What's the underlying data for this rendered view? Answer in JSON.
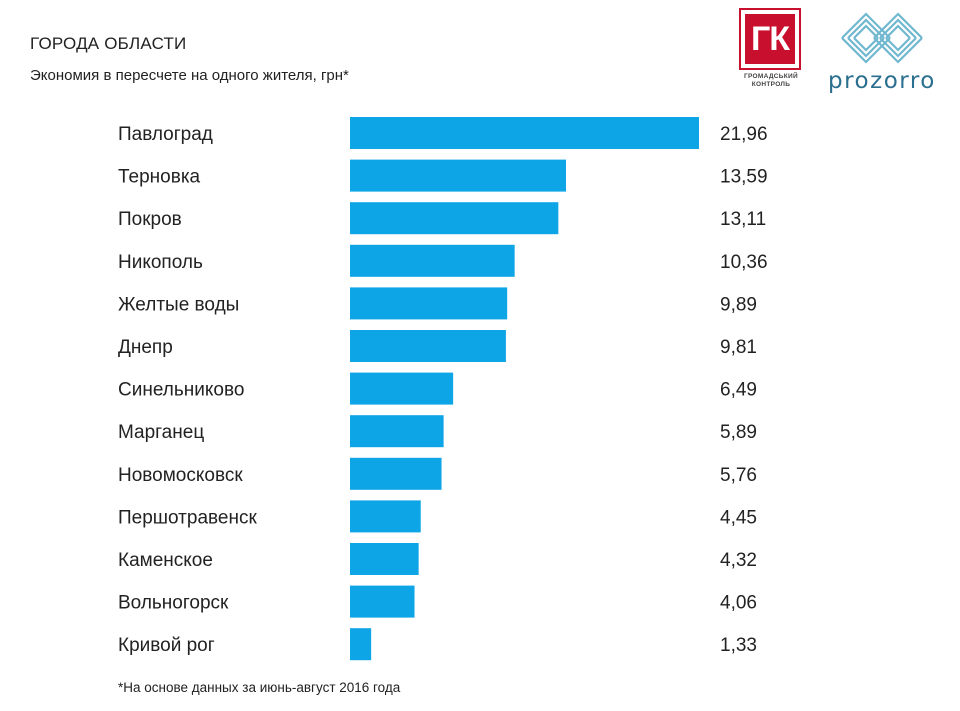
{
  "header": {
    "title": "ГОРОДА ОБЛАСТИ",
    "subtitle": "Экономия в пересчете на одного жителя, грн*"
  },
  "logos": {
    "gk_letters": "ГК",
    "gk_caption_line1": "ГРОМАДСЬКИЙ",
    "gk_caption_line2": "КОНТРОЛЬ",
    "prozorro_text": "prozorro"
  },
  "footnote": "*На основе данных за июнь-август 2016 года",
  "colors": {
    "bar": "#0ea5e6",
    "gk_red": "#c8102e",
    "prozorro_blue": "#2a6f8f"
  },
  "chart_data": {
    "type": "bar",
    "orientation": "horizontal",
    "categories": [
      "Павлоград",
      "Терновка",
      "Покров",
      "Никополь",
      "Желтые воды",
      "Днепр",
      "Синельниково",
      "Марганец",
      "Новомосковск",
      "Першотравенск",
      "Каменское",
      "Вольногорск",
      "Кривой рог"
    ],
    "values": [
      21.96,
      13.59,
      13.11,
      10.36,
      9.89,
      9.81,
      6.49,
      5.89,
      5.76,
      4.45,
      4.32,
      4.06,
      1.33
    ],
    "value_labels": [
      "21,96",
      "13,59",
      "13,11",
      "10,36",
      "9,89",
      "9,81",
      "6,49",
      "5,89",
      "5,76",
      "4,45",
      "4,32",
      "4,06",
      "1,33"
    ],
    "title": "",
    "xlabel": "",
    "ylabel": "",
    "grid": false,
    "legend": "none"
  }
}
